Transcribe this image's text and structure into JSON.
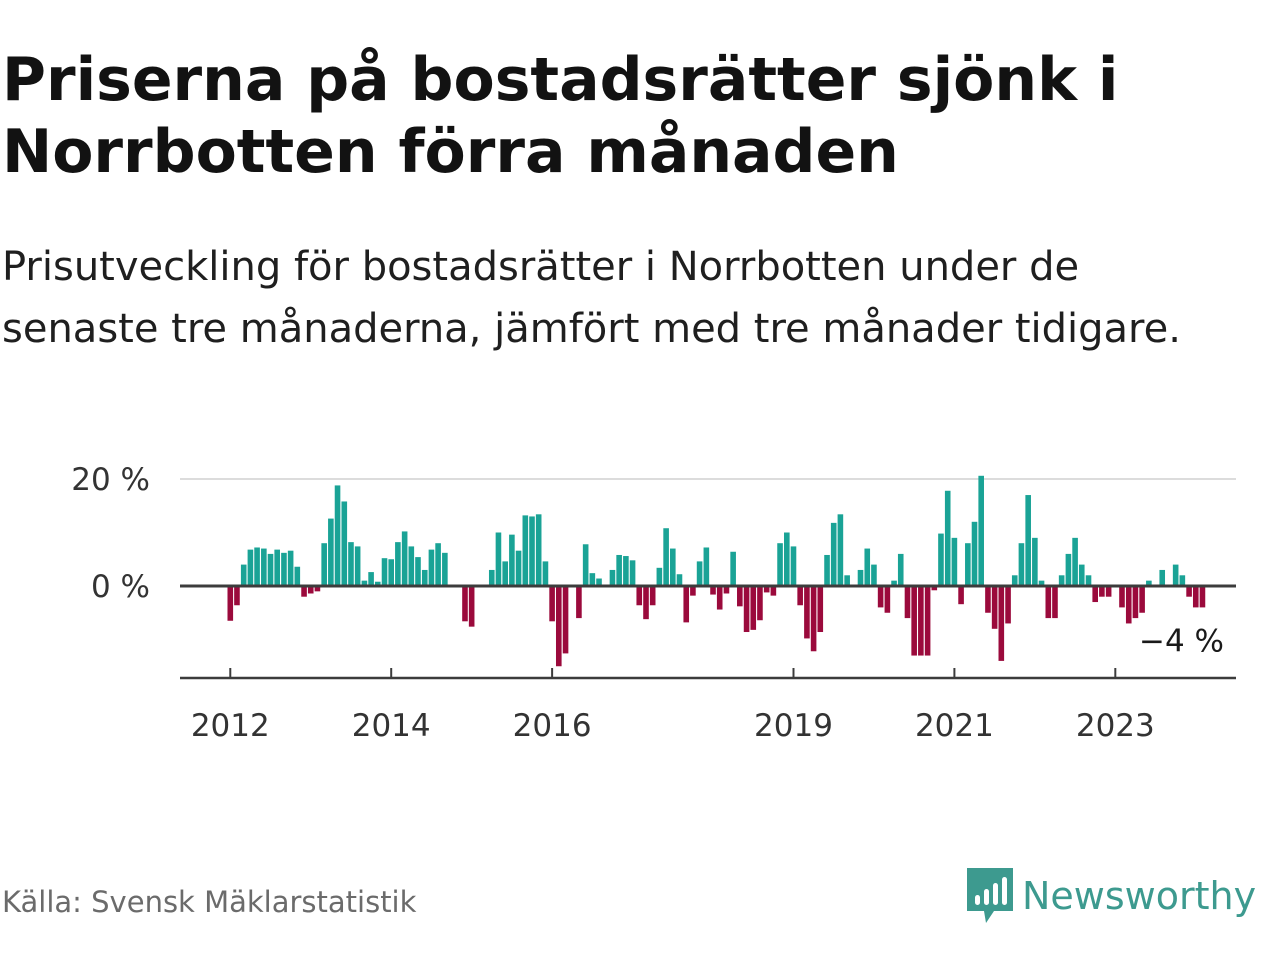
{
  "title": "Priserna på bostadsrätter sjönk i Norrbotten förra månaden",
  "subtitle": "Prisutveckling för bostadsrätter i Norrbotten under de senaste tre månaderna, jämfört med tre månader tidigare.",
  "source": "Källa: Svensk Mäklarstatistik",
  "brand": "Newsworthy",
  "colors": {
    "positive": "#1aa396",
    "negative": "#9b0a3c",
    "axis": "#3c3c3c",
    "grid": "#dcdcdc",
    "brand": "#3d9a8f"
  },
  "chart_data": {
    "type": "bar",
    "title": "Priserna på bostadsrätter sjönk i Norrbotten förra månaden",
    "xlabel": "",
    "ylabel": "",
    "ylim": [
      -19,
      21
    ],
    "ytick_values": [
      0,
      20
    ],
    "ytick_labels": [
      "0 %",
      "20 %"
    ],
    "xtick_values": [
      2012,
      2014,
      2016,
      2019,
      2021,
      2023
    ],
    "xtick_labels": [
      "2012",
      "2014",
      "2016",
      "2019",
      "2021",
      "2023"
    ],
    "xlim": [
      2011.375,
      2024.5
    ],
    "last_value_label": "−4 %",
    "series": [
      {
        "name": "Prisutveckling",
        "points": [
          {
            "x": 2012.0,
            "y": -6.5
          },
          {
            "x": 2012.083,
            "y": -3.6
          },
          {
            "x": 2012.167,
            "y": 4.0
          },
          {
            "x": 2012.25,
            "y": 6.8
          },
          {
            "x": 2012.333,
            "y": 7.2
          },
          {
            "x": 2012.417,
            "y": 7.0
          },
          {
            "x": 2012.5,
            "y": 6.0
          },
          {
            "x": 2012.583,
            "y": 6.8
          },
          {
            "x": 2012.667,
            "y": 6.2
          },
          {
            "x": 2012.75,
            "y": 6.6
          },
          {
            "x": 2012.833,
            "y": 3.6
          },
          {
            "x": 2012.917,
            "y": -2.0
          },
          {
            "x": 2013.0,
            "y": -1.4
          },
          {
            "x": 2013.083,
            "y": -1.0
          },
          {
            "x": 2013.167,
            "y": 8.0
          },
          {
            "x": 2013.25,
            "y": 12.6
          },
          {
            "x": 2013.333,
            "y": 18.8
          },
          {
            "x": 2013.417,
            "y": 15.8
          },
          {
            "x": 2013.5,
            "y": 8.2
          },
          {
            "x": 2013.583,
            "y": 7.4
          },
          {
            "x": 2013.667,
            "y": 1.0
          },
          {
            "x": 2013.75,
            "y": 2.6
          },
          {
            "x": 2013.833,
            "y": 0.8
          },
          {
            "x": 2013.917,
            "y": 5.2
          },
          {
            "x": 2014.0,
            "y": 5.0
          },
          {
            "x": 2014.083,
            "y": 8.2
          },
          {
            "x": 2014.167,
            "y": 10.2
          },
          {
            "x": 2014.25,
            "y": 7.4
          },
          {
            "x": 2014.333,
            "y": 5.4
          },
          {
            "x": 2014.417,
            "y": 3.0
          },
          {
            "x": 2014.5,
            "y": 6.8
          },
          {
            "x": 2014.583,
            "y": 8.0
          },
          {
            "x": 2014.667,
            "y": 6.2
          },
          {
            "x": 2014.917,
            "y": -6.6
          },
          {
            "x": 2015.0,
            "y": -7.6
          },
          {
            "x": 2015.25,
            "y": 3.0
          },
          {
            "x": 2015.333,
            "y": 10.0
          },
          {
            "x": 2015.417,
            "y": 4.6
          },
          {
            "x": 2015.5,
            "y": 9.6
          },
          {
            "x": 2015.583,
            "y": 6.6
          },
          {
            "x": 2015.667,
            "y": 13.2
          },
          {
            "x": 2015.75,
            "y": 13.0
          },
          {
            "x": 2015.833,
            "y": 13.4
          },
          {
            "x": 2015.917,
            "y": 4.6
          },
          {
            "x": 2016.0,
            "y": -6.6
          },
          {
            "x": 2016.083,
            "y": -15.0
          },
          {
            "x": 2016.167,
            "y": -12.6
          },
          {
            "x": 2016.333,
            "y": -6.0
          },
          {
            "x": 2016.417,
            "y": 7.8
          },
          {
            "x": 2016.5,
            "y": 2.4
          },
          {
            "x": 2016.583,
            "y": 1.4
          },
          {
            "x": 2016.75,
            "y": 3.0
          },
          {
            "x": 2016.833,
            "y": 5.8
          },
          {
            "x": 2016.917,
            "y": 5.6
          },
          {
            "x": 2017.0,
            "y": 4.8
          },
          {
            "x": 2017.083,
            "y": -3.6
          },
          {
            "x": 2017.167,
            "y": -6.2
          },
          {
            "x": 2017.25,
            "y": -3.6
          },
          {
            "x": 2017.333,
            "y": 3.4
          },
          {
            "x": 2017.417,
            "y": 10.8
          },
          {
            "x": 2017.5,
            "y": 7.0
          },
          {
            "x": 2017.583,
            "y": 2.2
          },
          {
            "x": 2017.667,
            "y": -6.8
          },
          {
            "x": 2017.75,
            "y": -1.8
          },
          {
            "x": 2017.833,
            "y": 4.6
          },
          {
            "x": 2017.917,
            "y": 7.2
          },
          {
            "x": 2018.0,
            "y": -1.6
          },
          {
            "x": 2018.083,
            "y": -4.4
          },
          {
            "x": 2018.167,
            "y": -1.4
          },
          {
            "x": 2018.25,
            "y": 6.4
          },
          {
            "x": 2018.333,
            "y": -3.8
          },
          {
            "x": 2018.417,
            "y": -8.6
          },
          {
            "x": 2018.5,
            "y": -8.2
          },
          {
            "x": 2018.583,
            "y": -6.4
          },
          {
            "x": 2018.667,
            "y": -1.2
          },
          {
            "x": 2018.75,
            "y": -1.8
          },
          {
            "x": 2018.833,
            "y": 8.0
          },
          {
            "x": 2018.917,
            "y": 10.0
          },
          {
            "x": 2019.0,
            "y": 7.4
          },
          {
            "x": 2019.083,
            "y": -3.6
          },
          {
            "x": 2019.167,
            "y": -9.8
          },
          {
            "x": 2019.25,
            "y": -12.2
          },
          {
            "x": 2019.333,
            "y": -8.6
          },
          {
            "x": 2019.417,
            "y": 5.8
          },
          {
            "x": 2019.5,
            "y": 11.8
          },
          {
            "x": 2019.583,
            "y": 13.4
          },
          {
            "x": 2019.667,
            "y": 2.0
          },
          {
            "x": 2019.833,
            "y": 3.0
          },
          {
            "x": 2019.917,
            "y": 7.0
          },
          {
            "x": 2020.0,
            "y": 4.0
          },
          {
            "x": 2020.083,
            "y": -4.0
          },
          {
            "x": 2020.167,
            "y": -5.0
          },
          {
            "x": 2020.25,
            "y": 1.0
          },
          {
            "x": 2020.333,
            "y": 6.0
          },
          {
            "x": 2020.417,
            "y": -6.0
          },
          {
            "x": 2020.5,
            "y": -13.0
          },
          {
            "x": 2020.583,
            "y": -13.0
          },
          {
            "x": 2020.667,
            "y": -13.0
          },
          {
            "x": 2020.75,
            "y": -0.8
          },
          {
            "x": 2020.833,
            "y": 9.8
          },
          {
            "x": 2020.917,
            "y": 17.8
          },
          {
            "x": 2021.0,
            "y": 9.0
          },
          {
            "x": 2021.083,
            "y": -3.4
          },
          {
            "x": 2021.167,
            "y": 8.0
          },
          {
            "x": 2021.25,
            "y": 12.0
          },
          {
            "x": 2021.333,
            "y": 20.6
          },
          {
            "x": 2021.417,
            "y": -5.0
          },
          {
            "x": 2021.5,
            "y": -8.0
          },
          {
            "x": 2021.583,
            "y": -14.0
          },
          {
            "x": 2021.667,
            "y": -7.0
          },
          {
            "x": 2021.75,
            "y": 2.0
          },
          {
            "x": 2021.833,
            "y": 8.0
          },
          {
            "x": 2021.917,
            "y": 17.0
          },
          {
            "x": 2022.0,
            "y": 9.0
          },
          {
            "x": 2022.083,
            "y": 1.0
          },
          {
            "x": 2022.167,
            "y": -6.0
          },
          {
            "x": 2022.25,
            "y": -6.0
          },
          {
            "x": 2022.333,
            "y": 2.0
          },
          {
            "x": 2022.417,
            "y": 6.0
          },
          {
            "x": 2022.5,
            "y": 9.0
          },
          {
            "x": 2022.583,
            "y": 4.0
          },
          {
            "x": 2022.667,
            "y": 2.0
          },
          {
            "x": 2022.75,
            "y": -3.0
          },
          {
            "x": 2022.833,
            "y": -2.0
          },
          {
            "x": 2022.917,
            "y": -2.0
          },
          {
            "x": 2023.083,
            "y": -4.0
          },
          {
            "x": 2023.167,
            "y": -7.0
          },
          {
            "x": 2023.25,
            "y": -6.0
          },
          {
            "x": 2023.333,
            "y": -5.0
          },
          {
            "x": 2023.417,
            "y": 1.0
          },
          {
            "x": 2023.583,
            "y": 3.0
          },
          {
            "x": 2023.75,
            "y": 4.0
          },
          {
            "x": 2023.833,
            "y": 2.0
          },
          {
            "x": 2023.917,
            "y": -2.0
          },
          {
            "x": 2024.0,
            "y": -4.0
          },
          {
            "x": 2024.083,
            "y": -4.0
          }
        ]
      }
    ]
  }
}
